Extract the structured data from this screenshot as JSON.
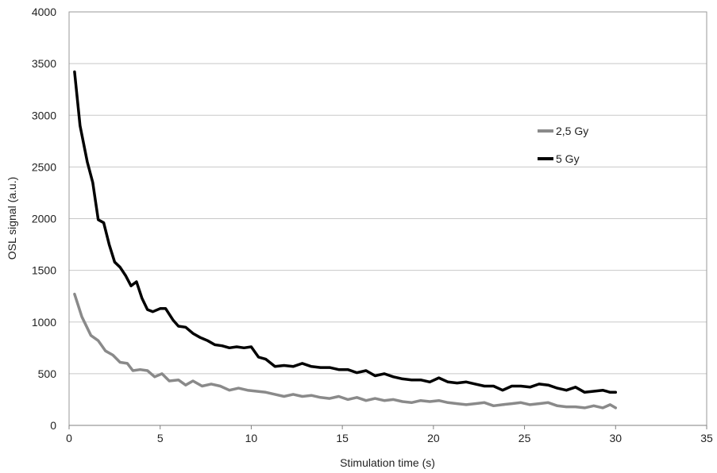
{
  "chart_data": {
    "type": "line",
    "title": "",
    "xlabel": "Stimulation time (s)",
    "ylabel": "OSL signal (a.u.)",
    "xlim": [
      0,
      35
    ],
    "ylim": [
      0,
      4000
    ],
    "x_ticks": [
      0,
      5,
      10,
      15,
      20,
      25,
      30,
      35
    ],
    "y_ticks": [
      0,
      500,
      1000,
      1500,
      2000,
      2500,
      3000,
      3500,
      4000
    ],
    "x_tick_labels": [
      "0",
      "5",
      "10",
      "15",
      "20",
      "25",
      "30",
      "35"
    ],
    "y_tick_labels": [
      "0",
      "500",
      "1000",
      "1500",
      "2000",
      "2500",
      "3000",
      "3500",
      "4000"
    ],
    "grid": "horizontal",
    "legend_position": "right",
    "series": [
      {
        "name": "2,5 Gy",
        "color": "#8a8a8a",
        "x": [
          0.3,
          0.7,
          1.2,
          1.6,
          2.0,
          2.4,
          2.8,
          3.2,
          3.5,
          3.9,
          4.3,
          4.7,
          5.1,
          5.5,
          6.0,
          6.4,
          6.8,
          7.3,
          7.8,
          8.3,
          8.8,
          9.3,
          9.8,
          10.3,
          10.8,
          11.3,
          11.8,
          12.3,
          12.8,
          13.3,
          13.8,
          14.3,
          14.8,
          15.3,
          15.8,
          16.3,
          16.8,
          17.3,
          17.8,
          18.3,
          18.8,
          19.3,
          19.8,
          20.3,
          20.8,
          21.3,
          21.8,
          22.3,
          22.8,
          23.3,
          23.8,
          24.3,
          24.8,
          25.3,
          25.8,
          26.3,
          26.8,
          27.3,
          27.8,
          28.3,
          28.8,
          29.3,
          29.7,
          30.0
        ],
        "values": [
          1270,
          1050,
          870,
          820,
          720,
          680,
          610,
          600,
          530,
          540,
          530,
          470,
          500,
          430,
          440,
          390,
          430,
          380,
          400,
          380,
          340,
          360,
          340,
          330,
          320,
          300,
          280,
          300,
          280,
          290,
          270,
          260,
          280,
          250,
          270,
          240,
          260,
          240,
          250,
          230,
          220,
          240,
          230,
          240,
          220,
          210,
          200,
          210,
          220,
          190,
          200,
          210,
          220,
          200,
          210,
          220,
          190,
          180,
          180,
          170,
          190,
          170,
          200,
          170
        ]
      },
      {
        "name": "5 Gy",
        "color": "#000000",
        "x": [
          0.3,
          0.6,
          1.0,
          1.3,
          1.6,
          1.9,
          2.2,
          2.5,
          2.8,
          3.1,
          3.4,
          3.7,
          4.0,
          4.3,
          4.6,
          5.0,
          5.3,
          5.7,
          6.0,
          6.4,
          6.8,
          7.2,
          7.6,
          8.0,
          8.4,
          8.8,
          9.2,
          9.6,
          10.0,
          10.4,
          10.8,
          11.3,
          11.8,
          12.3,
          12.8,
          13.3,
          13.8,
          14.3,
          14.8,
          15.3,
          15.8,
          16.3,
          16.8,
          17.3,
          17.8,
          18.3,
          18.8,
          19.3,
          19.8,
          20.3,
          20.8,
          21.3,
          21.8,
          22.3,
          22.8,
          23.3,
          23.8,
          24.3,
          24.8,
          25.3,
          25.8,
          26.3,
          26.8,
          27.3,
          27.8,
          28.3,
          28.8,
          29.3,
          29.7,
          30.0
        ],
        "values": [
          3420,
          2900,
          2550,
          2350,
          1990,
          1960,
          1750,
          1580,
          1530,
          1450,
          1350,
          1390,
          1230,
          1120,
          1100,
          1130,
          1130,
          1020,
          960,
          950,
          890,
          850,
          820,
          780,
          770,
          750,
          760,
          750,
          760,
          660,
          640,
          570,
          580,
          570,
          600,
          570,
          560,
          560,
          540,
          540,
          510,
          530,
          480,
          500,
          470,
          450,
          440,
          440,
          420,
          460,
          420,
          410,
          420,
          400,
          380,
          380,
          340,
          380,
          380,
          370,
          400,
          390,
          360,
          340,
          370,
          320,
          330,
          340,
          320,
          320
        ]
      }
    ]
  }
}
